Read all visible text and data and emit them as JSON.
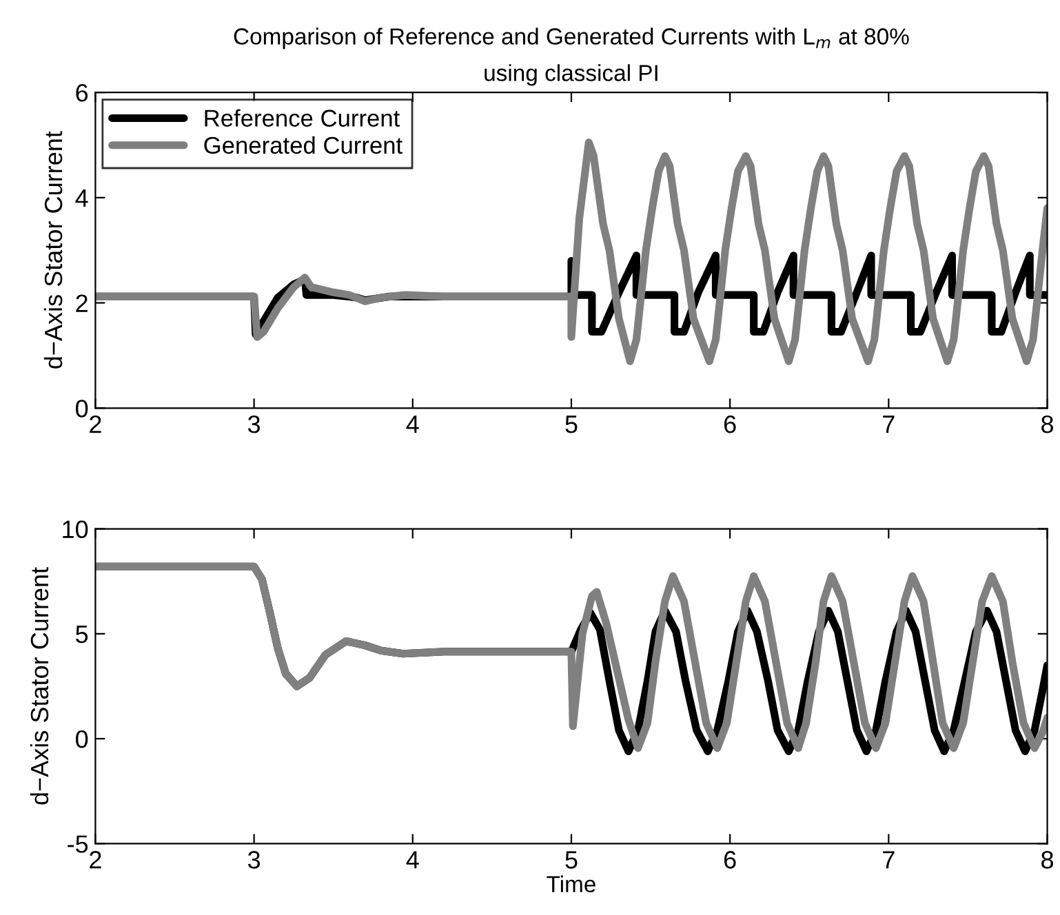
{
  "chart_data": [
    {
      "type": "line",
      "title": "Comparison of Reference and Generated Currents with L$_{m}$ at 80%\nusing classical PI",
      "ylabel": "d−Axis Stator Current",
      "xlim": [
        2,
        8
      ],
      "xticks": [
        2,
        3,
        4,
        5,
        6,
        7,
        8
      ],
      "ylim": [
        0,
        6
      ],
      "yticks": [
        0,
        2,
        4,
        6
      ],
      "grid": false,
      "legend": "top left",
      "marker": "none",
      "line_style": "solid",
      "series": [
        {
          "name": "Reference Current",
          "color": "#000000",
          "x": [
            2,
            3.0,
            3.01,
            3.05,
            3.15,
            3.25,
            3.32,
            3.33,
            3.5,
            3.65,
            3.7,
            3.85,
            5.0,
            5.0,
            5.01,
            5.13,
            5.13,
            5.19,
            5.3,
            5.41,
            5.41,
            5.65,
            5.65,
            5.71,
            5.8,
            5.91,
            5.91,
            6.15,
            6.15,
            6.21,
            6.3,
            6.4,
            6.4,
            6.64,
            6.64,
            6.7,
            6.8,
            6.89,
            6.89,
            7.14,
            7.14,
            7.2,
            7.3,
            7.4,
            7.4,
            7.65,
            7.65,
            7.71,
            7.8,
            7.89,
            7.89,
            8.0
          ],
          "values": [
            2.12,
            2.12,
            1.4,
            1.6,
            2.1,
            2.35,
            2.45,
            2.15,
            2.15,
            2.1,
            2.05,
            2.12,
            2.12,
            2.8,
            2.15,
            2.15,
            1.45,
            1.45,
            2.2,
            2.9,
            2.15,
            2.15,
            1.45,
            1.45,
            2.2,
            2.9,
            2.15,
            2.15,
            1.45,
            1.45,
            2.2,
            2.9,
            2.15,
            2.15,
            1.45,
            1.45,
            2.2,
            2.9,
            2.15,
            2.15,
            1.45,
            1.45,
            2.2,
            2.9,
            2.15,
            2.15,
            1.45,
            1.45,
            2.2,
            2.9,
            2.15,
            2.15
          ]
        },
        {
          "name": "Generated Current",
          "color": "#808080",
          "x": [
            2,
            3.0,
            3.02,
            3.06,
            3.15,
            3.25,
            3.32,
            3.36,
            3.5,
            3.6,
            3.7,
            3.8,
            3.95,
            4.2,
            5.0,
            5.0,
            5.05,
            5.11,
            5.14,
            5.2,
            5.24,
            5.3,
            5.37,
            5.41,
            5.47,
            5.51,
            5.55,
            5.59,
            5.62,
            5.67,
            5.71,
            5.77,
            5.87,
            5.91,
            5.97,
            6.01,
            6.05,
            6.1,
            6.13,
            6.18,
            6.22,
            6.28,
            6.37,
            6.41,
            6.47,
            6.51,
            6.55,
            6.59,
            6.62,
            6.67,
            6.71,
            6.77,
            6.87,
            6.91,
            6.97,
            7.01,
            7.05,
            7.1,
            7.13,
            7.18,
            7.22,
            7.28,
            7.37,
            7.41,
            7.47,
            7.51,
            7.55,
            7.6,
            7.63,
            7.68,
            7.72,
            7.78,
            7.87,
            7.91,
            7.97,
            8.0
          ],
          "values": [
            2.12,
            2.12,
            1.35,
            1.45,
            1.9,
            2.3,
            2.48,
            2.3,
            2.2,
            2.15,
            2.03,
            2.1,
            2.15,
            2.12,
            2.12,
            1.35,
            3.6,
            5.05,
            4.8,
            3.5,
            3.0,
            1.7,
            0.89,
            1.3,
            3.0,
            3.8,
            4.5,
            4.79,
            4.6,
            3.5,
            3.0,
            1.7,
            0.89,
            1.3,
            3.0,
            3.8,
            4.5,
            4.79,
            4.6,
            3.5,
            3.0,
            1.7,
            0.89,
            1.3,
            3.0,
            3.8,
            4.5,
            4.79,
            4.6,
            3.5,
            3.0,
            1.7,
            0.89,
            1.3,
            3.0,
            3.8,
            4.5,
            4.79,
            4.6,
            3.5,
            3.0,
            1.7,
            0.89,
            1.3,
            3.0,
            3.8,
            4.5,
            4.79,
            4.6,
            3.5,
            3.0,
            1.7,
            0.89,
            1.3,
            3.0,
            3.8
          ]
        }
      ]
    },
    {
      "type": "line",
      "xlabel": "Time",
      "ylabel": "d−Axis Stator Current",
      "xlim": [
        2,
        8
      ],
      "xticks": [
        2,
        3,
        4,
        5,
        6,
        7,
        8
      ],
      "ylim": [
        -5,
        10
      ],
      "yticks": [
        -5,
        0,
        5,
        10
      ],
      "grid": false,
      "legend": false,
      "marker": "none",
      "line_style": "solid",
      "series": [
        {
          "color": "#000000",
          "x": [
            2,
            3.0,
            3.05,
            3.1,
            3.15,
            3.2,
            3.27,
            3.35,
            3.45,
            3.58,
            3.7,
            3.8,
            3.94,
            4.2,
            4.6,
            5.0,
            5.06,
            5.12,
            5.18,
            5.24,
            5.3,
            5.36,
            5.42,
            5.48,
            5.53,
            5.59,
            5.66,
            5.72,
            5.79,
            5.86,
            5.92,
            5.99,
            6.05,
            6.11,
            6.17,
            6.24,
            6.3,
            6.37,
            6.43,
            6.49,
            6.56,
            6.62,
            6.68,
            6.74,
            6.8,
            6.86,
            6.92,
            6.98,
            7.05,
            7.11,
            7.17,
            7.23,
            7.29,
            7.35,
            7.41,
            7.48,
            7.55,
            7.62,
            7.68,
            7.74,
            7.8,
            7.86,
            7.92,
            7.97,
            8.0
          ],
          "values": [
            8.2,
            8.2,
            7.6,
            6.0,
            4.3,
            3.1,
            2.5,
            2.9,
            4.0,
            4.65,
            4.45,
            4.2,
            4.05,
            4.15,
            4.15,
            4.15,
            5.2,
            6.0,
            5.2,
            2.75,
            0.4,
            -0.6,
            0.4,
            2.75,
            5.1,
            6.1,
            5.1,
            2.75,
            0.4,
            -0.6,
            0.4,
            2.75,
            5.1,
            6.1,
            5.1,
            2.75,
            0.4,
            -0.6,
            0.4,
            2.75,
            5.1,
            6.1,
            5.1,
            2.75,
            0.4,
            -0.6,
            0.4,
            2.75,
            5.1,
            6.1,
            5.1,
            2.75,
            0.4,
            -0.6,
            0.4,
            2.75,
            5.1,
            6.1,
            5.1,
            2.75,
            0.4,
            -0.6,
            0.4,
            2.3,
            3.5
          ]
        },
        {
          "color": "#808080",
          "x": [
            2,
            3.0,
            3.05,
            3.1,
            3.15,
            3.2,
            3.27,
            3.35,
            3.45,
            3.58,
            3.7,
            3.8,
            3.94,
            4.2,
            4.6,
            5.0,
            5.01,
            5.07,
            5.13,
            5.16,
            5.22,
            5.29,
            5.36,
            5.42,
            5.48,
            5.53,
            5.59,
            5.64,
            5.71,
            5.78,
            5.85,
            5.92,
            5.98,
            6.04,
            6.1,
            6.15,
            6.22,
            6.29,
            6.36,
            6.43,
            6.48,
            6.54,
            6.59,
            6.64,
            6.71,
            6.78,
            6.85,
            6.92,
            6.98,
            7.04,
            7.1,
            7.15,
            7.22,
            7.28,
            7.34,
            7.41,
            7.47,
            7.53,
            7.59,
            7.65,
            7.72,
            7.78,
            7.85,
            7.92,
            7.97,
            8.0
          ],
          "values": [
            8.2,
            8.2,
            7.6,
            6.0,
            4.3,
            3.1,
            2.5,
            2.9,
            4.0,
            4.65,
            4.45,
            4.2,
            4.05,
            4.15,
            4.15,
            4.15,
            0.6,
            5.0,
            6.8,
            7.0,
            5.5,
            3.2,
            0.9,
            -0.45,
            0.75,
            3.65,
            6.55,
            7.75,
            6.55,
            3.65,
            0.75,
            -0.45,
            0.75,
            3.65,
            6.55,
            7.75,
            6.55,
            3.65,
            0.75,
            -0.45,
            0.75,
            3.65,
            6.55,
            7.75,
            6.55,
            3.65,
            0.75,
            -0.45,
            0.75,
            3.65,
            6.55,
            7.75,
            6.55,
            3.65,
            0.75,
            -0.45,
            0.75,
            3.65,
            6.55,
            7.75,
            6.55,
            3.65,
            0.75,
            -0.45,
            0.3,
            1.0
          ]
        }
      ]
    }
  ]
}
